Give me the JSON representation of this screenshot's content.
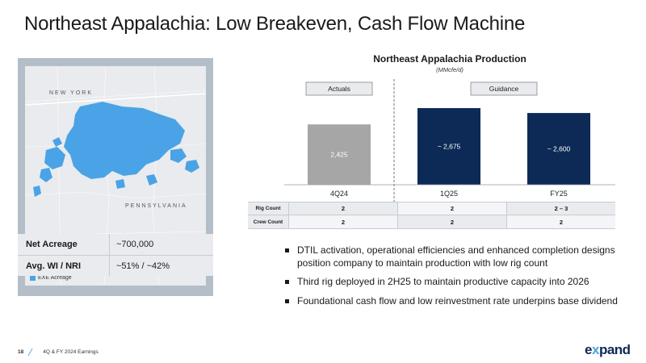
{
  "title": "Northeast Appalachia: Low Breakeven, Cash Flow Machine",
  "map": {
    "state_north": "NEW YORK",
    "state_south": "PENNSYLVANIA",
    "legend_label": "EXE Acreage",
    "colors": {
      "acreage": "#4aa3e6",
      "panel": "#b3bec8",
      "land": "#e9ebee"
    }
  },
  "stats": [
    {
      "label": "Net Acreage",
      "value": "~700,000"
    },
    {
      "label": "Avg. WI / NRI",
      "value": "~51% / ~42%"
    }
  ],
  "chart_data": {
    "type": "bar",
    "title": "Northeast Appalachia Production",
    "subtitle": "(MMcfe/d)",
    "categories": [
      "4Q24",
      "1Q25",
      "FY25"
    ],
    "values": [
      2425,
      2675,
      2600
    ],
    "value_labels": [
      "2,425",
      "~ 2,675",
      "~ 2,600"
    ],
    "groups": [
      {
        "label": "Actuals",
        "categories": [
          "4Q24"
        ]
      },
      {
        "label": "Guidance",
        "categories": [
          "1Q25",
          "FY25"
        ]
      }
    ],
    "colors": {
      "actual": "#a6a6a6",
      "guidance": "#0d2a57"
    },
    "ylim": [
      1500,
      2700
    ]
  },
  "counts_table": {
    "rows": [
      {
        "label": "Rig Count",
        "values": [
          "2",
          "2",
          "2 – 3"
        ]
      },
      {
        "label": "Crew Count",
        "values": [
          "2",
          "2",
          "2"
        ]
      }
    ]
  },
  "bullets": [
    "DTIL activation, operational efficiencies and enhanced completion designs position company to maintain production with low rig count",
    "Third rig deployed in 2H25 to maintain productive capacity into 2026",
    "Foundational cash flow and low reinvestment rate underpins base dividend"
  ],
  "footer": {
    "page": "18",
    "text": "4Q & FY 2024 Earnings"
  },
  "logo": {
    "prefix": "e",
    "x": "x",
    "suffix": "pand"
  }
}
